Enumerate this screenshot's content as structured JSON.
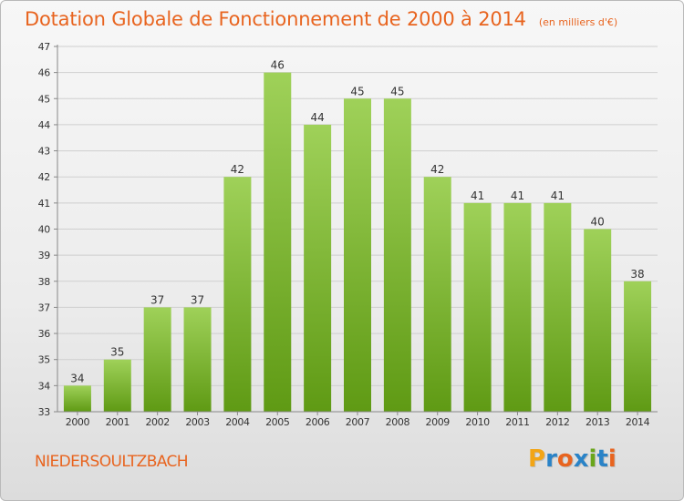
{
  "header": {
    "title": "Dotation Globale de Fonctionnement de 2000 à 2014",
    "subtitle": "(en milliers d'€)"
  },
  "footer": {
    "commune": "NIEDERSOULTZBACH",
    "logo_text": "Proxiti"
  },
  "colors": {
    "accent": "#e8641f",
    "bar_light": "#9fd159",
    "bar_dark": "#5f9a14",
    "grid": "#cfcfcf"
  },
  "chart_data": {
    "type": "bar",
    "categories": [
      "2000",
      "2001",
      "2002",
      "2003",
      "2004",
      "2005",
      "2006",
      "2007",
      "2008",
      "2009",
      "2010",
      "2011",
      "2012",
      "2013",
      "2014"
    ],
    "values": [
      34,
      35,
      37,
      37,
      42,
      46,
      44,
      45,
      45,
      42,
      41,
      41,
      41,
      40,
      38
    ],
    "ylim": [
      33,
      47
    ],
    "yticks": [
      33,
      34,
      35,
      36,
      37,
      38,
      39,
      40,
      41,
      42,
      43,
      44,
      45,
      46,
      47
    ],
    "grid": true,
    "data_labels": true
  }
}
